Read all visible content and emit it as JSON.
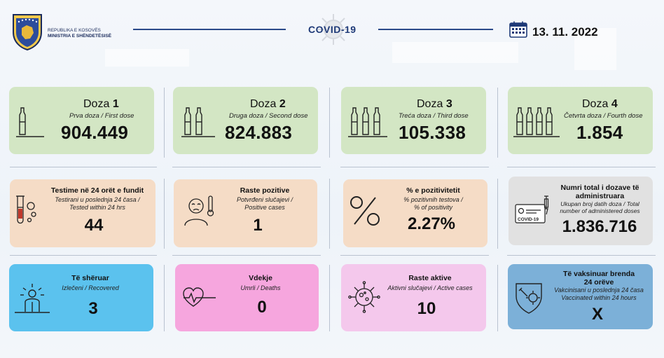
{
  "header": {
    "org_line1": "REPUBLIKA E KOSOVËS",
    "org_line2": "MINISTRIA E SHËNDETËSISË",
    "center_title": "COVID-19",
    "date": "13. 11. 2022"
  },
  "doses": [
    {
      "label": "Doza",
      "number": "1",
      "subtitle": "Prva doza / First dose",
      "value": "904.449"
    },
    {
      "label": "Doza",
      "number": "2",
      "subtitle": "Druga doza / Second dose",
      "value": "824.883"
    },
    {
      "label": "Doza",
      "number": "3",
      "subtitle": "Treća doza / Third dose",
      "value": "105.338"
    },
    {
      "label": "Doza",
      "number": "4",
      "subtitle": "Četvrta doza / Fourth dose",
      "value": "1.854"
    }
  ],
  "stats": [
    {
      "title": "Testime në 24 orët e fundit",
      "sub1": "Testirani u poslednja 24 časa /",
      "sub2": "Tested within 24 hrs",
      "value": "44"
    },
    {
      "title": "Raste pozitive",
      "sub1": "Potvrđeni slučajevi /",
      "sub2": "Positive cases",
      "value": "1"
    },
    {
      "title": "% e pozitivitetit",
      "sub1": "% pozitivnih testova /",
      "sub2": "% of positivity",
      "value": "2.27%"
    },
    {
      "title": "Numri total i dozave të",
      "title2": "administruara",
      "sub1": "Ukupan broj datih doza / Total",
      "sub2": "number of administered doses",
      "value": "1.836.716"
    },
    {
      "title": "Të shëruar",
      "sub1": "Izlečeni / Recovered",
      "value": "3"
    },
    {
      "title": "Vdekje",
      "sub1": "Umrli / Deaths",
      "value": "0"
    },
    {
      "title": "Raste aktive",
      "sub1": "Aktivni slučajevi / Active cases",
      "value": "10"
    },
    {
      "title": "Të vaksinuar brenda",
      "title2": "24 orëve",
      "sub1": "Vakcinisani u poslednja 24 časa",
      "sub2": "Vaccinated within 24 hours",
      "value": "X"
    }
  ],
  "icons": {
    "certificate_label": "COVID-19"
  },
  "colors": {
    "dose_card": "#d3e6c4",
    "peach_card": "#f5dcc6",
    "gray_card": "#e1e1e1",
    "blue_card": "#5bc2ee",
    "pink_card": "#f6a6de",
    "lilac_card": "#f4c8ec",
    "steel_card": "#7cb0d8"
  }
}
